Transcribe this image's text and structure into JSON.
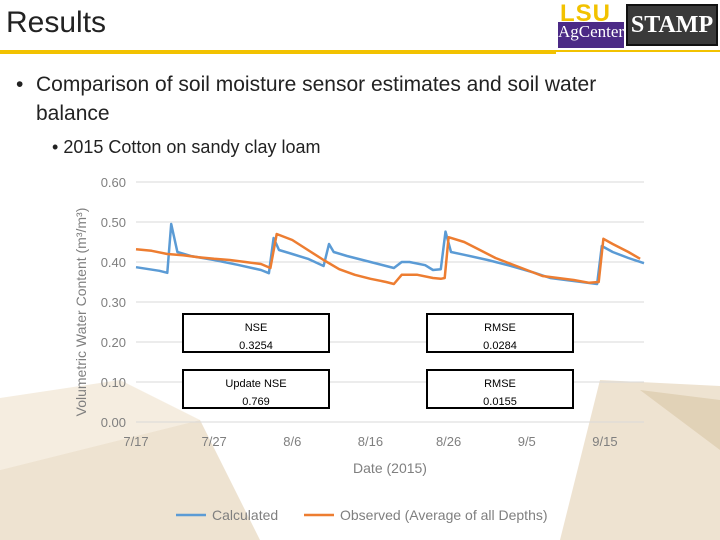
{
  "header": {
    "title": "Results"
  },
  "logos": {
    "lsu_text": "LSU",
    "agcenter_text": "AgCenter",
    "stamp_text": "STAMP"
  },
  "bullets": {
    "main": "Comparison of soil moisture sensor estimates and soil water balance",
    "sub": "2015 Cotton on sandy clay loam",
    "marker": "•"
  },
  "stats": {
    "nse_label": "NSE",
    "nse_value": "0.3254",
    "rmse_label": "RMSE",
    "rmse_value": "0.0284",
    "update_nse_label": "Update NSE",
    "update_nse_value": "0.769",
    "rmse2_label": "RMSE",
    "rmse2_value": "0.0155"
  },
  "colors": {
    "calculated": "#5b9bd5",
    "observed": "#ed7d31",
    "accent": "#f2c200",
    "grid": "#d9d9d9"
  },
  "chart_data": {
    "type": "line",
    "xlabel": "Date (2015)",
    "ylabel": "Volumetric Water Content (m³/m³)",
    "ylim": [
      0,
      0.6
    ],
    "yticks": [
      "0.00",
      "0.10",
      "0.20",
      "0.30",
      "0.40",
      "0.50",
      "0.60"
    ],
    "xlim": [
      0,
      65
    ],
    "xticks": [
      {
        "day": 0,
        "label": "7/17"
      },
      {
        "day": 10,
        "label": "7/27"
      },
      {
        "day": 20,
        "label": "8/6"
      },
      {
        "day": 30,
        "label": "8/16"
      },
      {
        "day": 40,
        "label": "8/26"
      },
      {
        "day": 50,
        "label": "9/5"
      },
      {
        "day": 60,
        "label": "9/15"
      }
    ],
    "series": [
      {
        "name": "Calculated",
        "points": [
          [
            0,
            0.387
          ],
          [
            3,
            0.378
          ],
          [
            4,
            0.373
          ],
          [
            4.5,
            0.495
          ],
          [
            5.3,
            0.425
          ],
          [
            7,
            0.415
          ],
          [
            10,
            0.405
          ],
          [
            13,
            0.393
          ],
          [
            16,
            0.38
          ],
          [
            17,
            0.372
          ],
          [
            17.6,
            0.46
          ],
          [
            18.3,
            0.43
          ],
          [
            20,
            0.42
          ],
          [
            22,
            0.408
          ],
          [
            24,
            0.39
          ],
          [
            24.7,
            0.445
          ],
          [
            25.3,
            0.425
          ],
          [
            27,
            0.415
          ],
          [
            30,
            0.4
          ],
          [
            32,
            0.39
          ],
          [
            33,
            0.385
          ],
          [
            34,
            0.4
          ],
          [
            35,
            0.4
          ],
          [
            37,
            0.392
          ],
          [
            38,
            0.38
          ],
          [
            39,
            0.382
          ],
          [
            39.6,
            0.476
          ],
          [
            40.3,
            0.425
          ],
          [
            42,
            0.418
          ],
          [
            45,
            0.405
          ],
          [
            48,
            0.39
          ],
          [
            51,
            0.373
          ],
          [
            53,
            0.36
          ],
          [
            55,
            0.355
          ],
          [
            57,
            0.35
          ],
          [
            59,
            0.345
          ],
          [
            59.6,
            0.44
          ],
          [
            61,
            0.425
          ],
          [
            63,
            0.41
          ],
          [
            65,
            0.397
          ]
        ]
      },
      {
        "name": "Observed (Average of all Depths)",
        "points": [
          [
            0,
            0.432
          ],
          [
            2,
            0.428
          ],
          [
            4,
            0.42
          ],
          [
            6,
            0.417
          ],
          [
            8,
            0.412
          ],
          [
            10,
            0.408
          ],
          [
            12,
            0.405
          ],
          [
            14,
            0.4
          ],
          [
            16,
            0.395
          ],
          [
            17.2,
            0.385
          ],
          [
            18,
            0.47
          ],
          [
            20,
            0.455
          ],
          [
            22,
            0.43
          ],
          [
            24,
            0.405
          ],
          [
            26,
            0.382
          ],
          [
            28,
            0.368
          ],
          [
            30,
            0.358
          ],
          [
            32,
            0.35
          ],
          [
            33,
            0.345
          ],
          [
            34,
            0.368
          ],
          [
            36,
            0.368
          ],
          [
            38,
            0.36
          ],
          [
            39,
            0.358
          ],
          [
            39.5,
            0.36
          ],
          [
            40,
            0.462
          ],
          [
            42,
            0.45
          ],
          [
            44,
            0.43
          ],
          [
            46,
            0.41
          ],
          [
            48,
            0.395
          ],
          [
            50,
            0.38
          ],
          [
            52,
            0.365
          ],
          [
            54,
            0.36
          ],
          [
            56,
            0.355
          ],
          [
            58,
            0.348
          ],
          [
            59.2,
            0.35
          ],
          [
            59.8,
            0.458
          ],
          [
            61,
            0.445
          ],
          [
            63,
            0.425
          ],
          [
            64.5,
            0.408
          ]
        ]
      }
    ]
  }
}
